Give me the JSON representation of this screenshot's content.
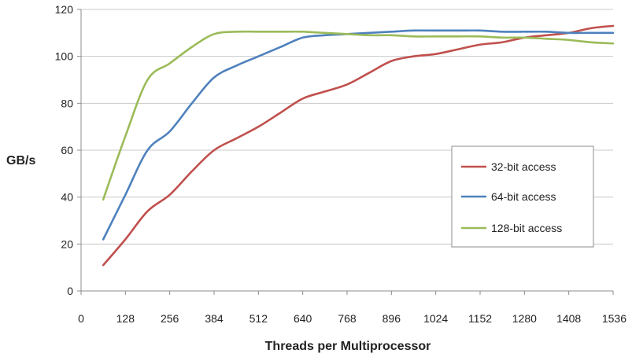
{
  "chart_data": {
    "type": "line",
    "title": "",
    "xlabel": "Threads per Multiprocessor",
    "ylabel": "GB/s",
    "xlim": [
      0,
      1536
    ],
    "ylim": [
      0,
      120
    ],
    "xticks": [
      "0",
      "128",
      "256",
      "384",
      "512",
      "640",
      "768",
      "896",
      "1024",
      "1152",
      "1280",
      "1408",
      "1536"
    ],
    "yticks": [
      "0",
      "20",
      "40",
      "60",
      "80",
      "100",
      "120"
    ],
    "grid": "horizontal",
    "legend_position": "right",
    "series": [
      {
        "name": "32-bit access",
        "color": "#c0504d",
        "x": [
          64,
          128,
          192,
          256,
          320,
          384,
          448,
          512,
          576,
          640,
          704,
          768,
          832,
          896,
          960,
          1024,
          1088,
          1152,
          1216,
          1280,
          1344,
          1408,
          1472,
          1536
        ],
        "y": [
          11,
          22,
          34,
          41,
          51,
          60,
          65,
          70,
          76,
          82,
          85,
          88,
          93,
          98,
          100,
          101,
          103,
          105,
          106,
          108,
          109,
          110,
          112,
          113
        ]
      },
      {
        "name": "64-bit access",
        "color": "#4f81bd",
        "x": [
          64,
          128,
          192,
          256,
          320,
          384,
          448,
          512,
          576,
          640,
          704,
          768,
          832,
          896,
          960,
          1024,
          1088,
          1152,
          1216,
          1280,
          1344,
          1408,
          1472,
          1536
        ],
        "y": [
          22,
          41,
          60,
          68,
          80,
          91,
          96,
          100,
          104,
          108,
          109,
          109.5,
          110,
          110.5,
          111,
          111,
          111,
          111,
          110.5,
          110.5,
          110.5,
          110,
          110,
          110
        ]
      },
      {
        "name": "128-bit access",
        "color": "#9bbb59",
        "x": [
          64,
          128,
          192,
          256,
          320,
          384,
          448,
          512,
          576,
          640,
          704,
          768,
          832,
          896,
          960,
          1024,
          1088,
          1152,
          1216,
          1280,
          1344,
          1408,
          1472,
          1536
        ],
        "y": [
          39,
          66,
          90,
          97,
          104,
          109.5,
          110.5,
          110.5,
          110.5,
          110.5,
          110,
          109.5,
          109,
          109,
          108.5,
          108.5,
          108.5,
          108.5,
          108,
          108,
          107.5,
          107,
          106,
          105.5
        ]
      }
    ]
  }
}
